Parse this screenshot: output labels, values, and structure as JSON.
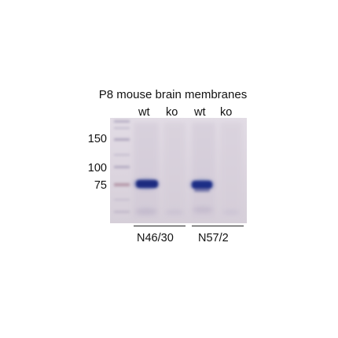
{
  "figure": {
    "title": "P8 mouse brain membranes",
    "lanes": [
      {
        "label": "wt"
      },
      {
        "label": "ko"
      },
      {
        "label": "wt"
      },
      {
        "label": "ko"
      }
    ],
    "markers": [
      {
        "label": "150"
      },
      {
        "label": "100"
      },
      {
        "label": "75"
      }
    ],
    "groups": [
      {
        "label": "N46/30"
      },
      {
        "label": "N57/2"
      }
    ],
    "colors": {
      "membrane": "#dbd4de",
      "band": "#1e2f86",
      "ladder": "#b0a8bf"
    }
  }
}
